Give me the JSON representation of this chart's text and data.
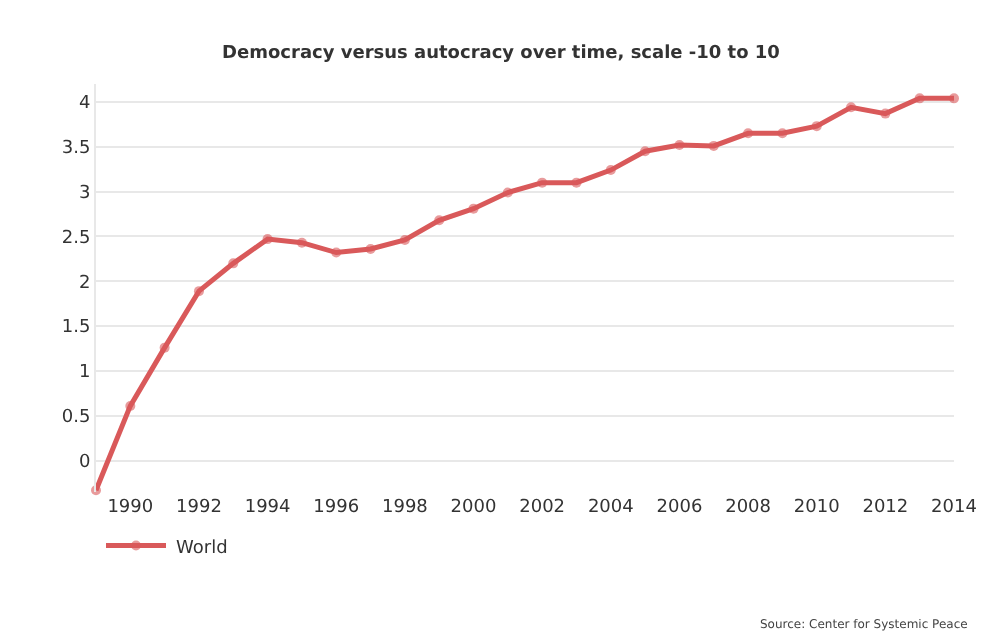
{
  "chart_data": {
    "type": "line",
    "title": "Democracy versus autocracy over time, scale -10 to 10",
    "x": [
      1989,
      1990,
      1991,
      1992,
      1993,
      1994,
      1995,
      1996,
      1997,
      1998,
      1999,
      2000,
      2001,
      2002,
      2003,
      2004,
      2005,
      2006,
      2007,
      2008,
      2009,
      2010,
      2011,
      2012,
      2013,
      2014
    ],
    "series": [
      {
        "name": "World",
        "color": "#d9595a",
        "values": [
          -0.33,
          0.61,
          1.26,
          1.89,
          2.2,
          2.47,
          2.43,
          2.32,
          2.36,
          2.46,
          2.68,
          2.81,
          2.99,
          3.1,
          3.1,
          3.24,
          3.45,
          3.52,
          3.51,
          3.65,
          3.65,
          3.73,
          3.94,
          3.87,
          4.04,
          4.04
        ]
      }
    ],
    "xlim": [
      1989,
      2014
    ],
    "xticks": [
      1990,
      1992,
      1994,
      1996,
      1998,
      2000,
      2002,
      2004,
      2006,
      2008,
      2010,
      2012,
      2014
    ],
    "ylim": [
      -0.35,
      4.2
    ],
    "yticks": [
      0,
      0.5,
      1,
      1.5,
      2,
      2.5,
      3,
      3.5,
      4
    ],
    "grid": "y",
    "legend": "bottom left",
    "marker": "circle",
    "line_style": "solid",
    "annotations": [
      "Source: Center for Systemic Peace"
    ]
  }
}
